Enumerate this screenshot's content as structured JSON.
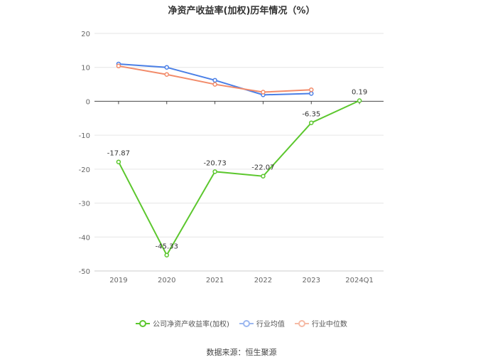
{
  "chart_data": {
    "type": "line",
    "title": "净资产收益率(加权)历年情况（%）",
    "categories": [
      "2019",
      "2020",
      "2021",
      "2022",
      "2023",
      "2024Q1"
    ],
    "ylim": [
      -50,
      20
    ],
    "yticks": [
      20,
      10,
      0,
      -10,
      -20,
      -30,
      -40,
      -50
    ],
    "grid": true,
    "legend_position": "bottom",
    "series": [
      {
        "name": "公司净资产收益率(加权)",
        "color": "#5cc72e",
        "values": [
          -17.87,
          -45.33,
          -20.73,
          -22.07,
          -6.35,
          0.19
        ],
        "labels": [
          "-17.87",
          "-45.33",
          "-20.73",
          "-22.07",
          "-6.35",
          "0.19"
        ]
      },
      {
        "name": "行业均值",
        "color": "#4a7fe6",
        "values": [
          11.0,
          10.0,
          6.2,
          1.9,
          2.3,
          null
        ]
      },
      {
        "name": "行业中位数",
        "color": "#f28b6a",
        "values": [
          10.4,
          7.9,
          5.0,
          2.7,
          3.4,
          null
        ]
      }
    ]
  },
  "legend": {
    "company": "公司净资产收益率(加权)",
    "avg": "行业均值",
    "median": "行业中位数"
  },
  "source": "数据来源：恒生聚源"
}
